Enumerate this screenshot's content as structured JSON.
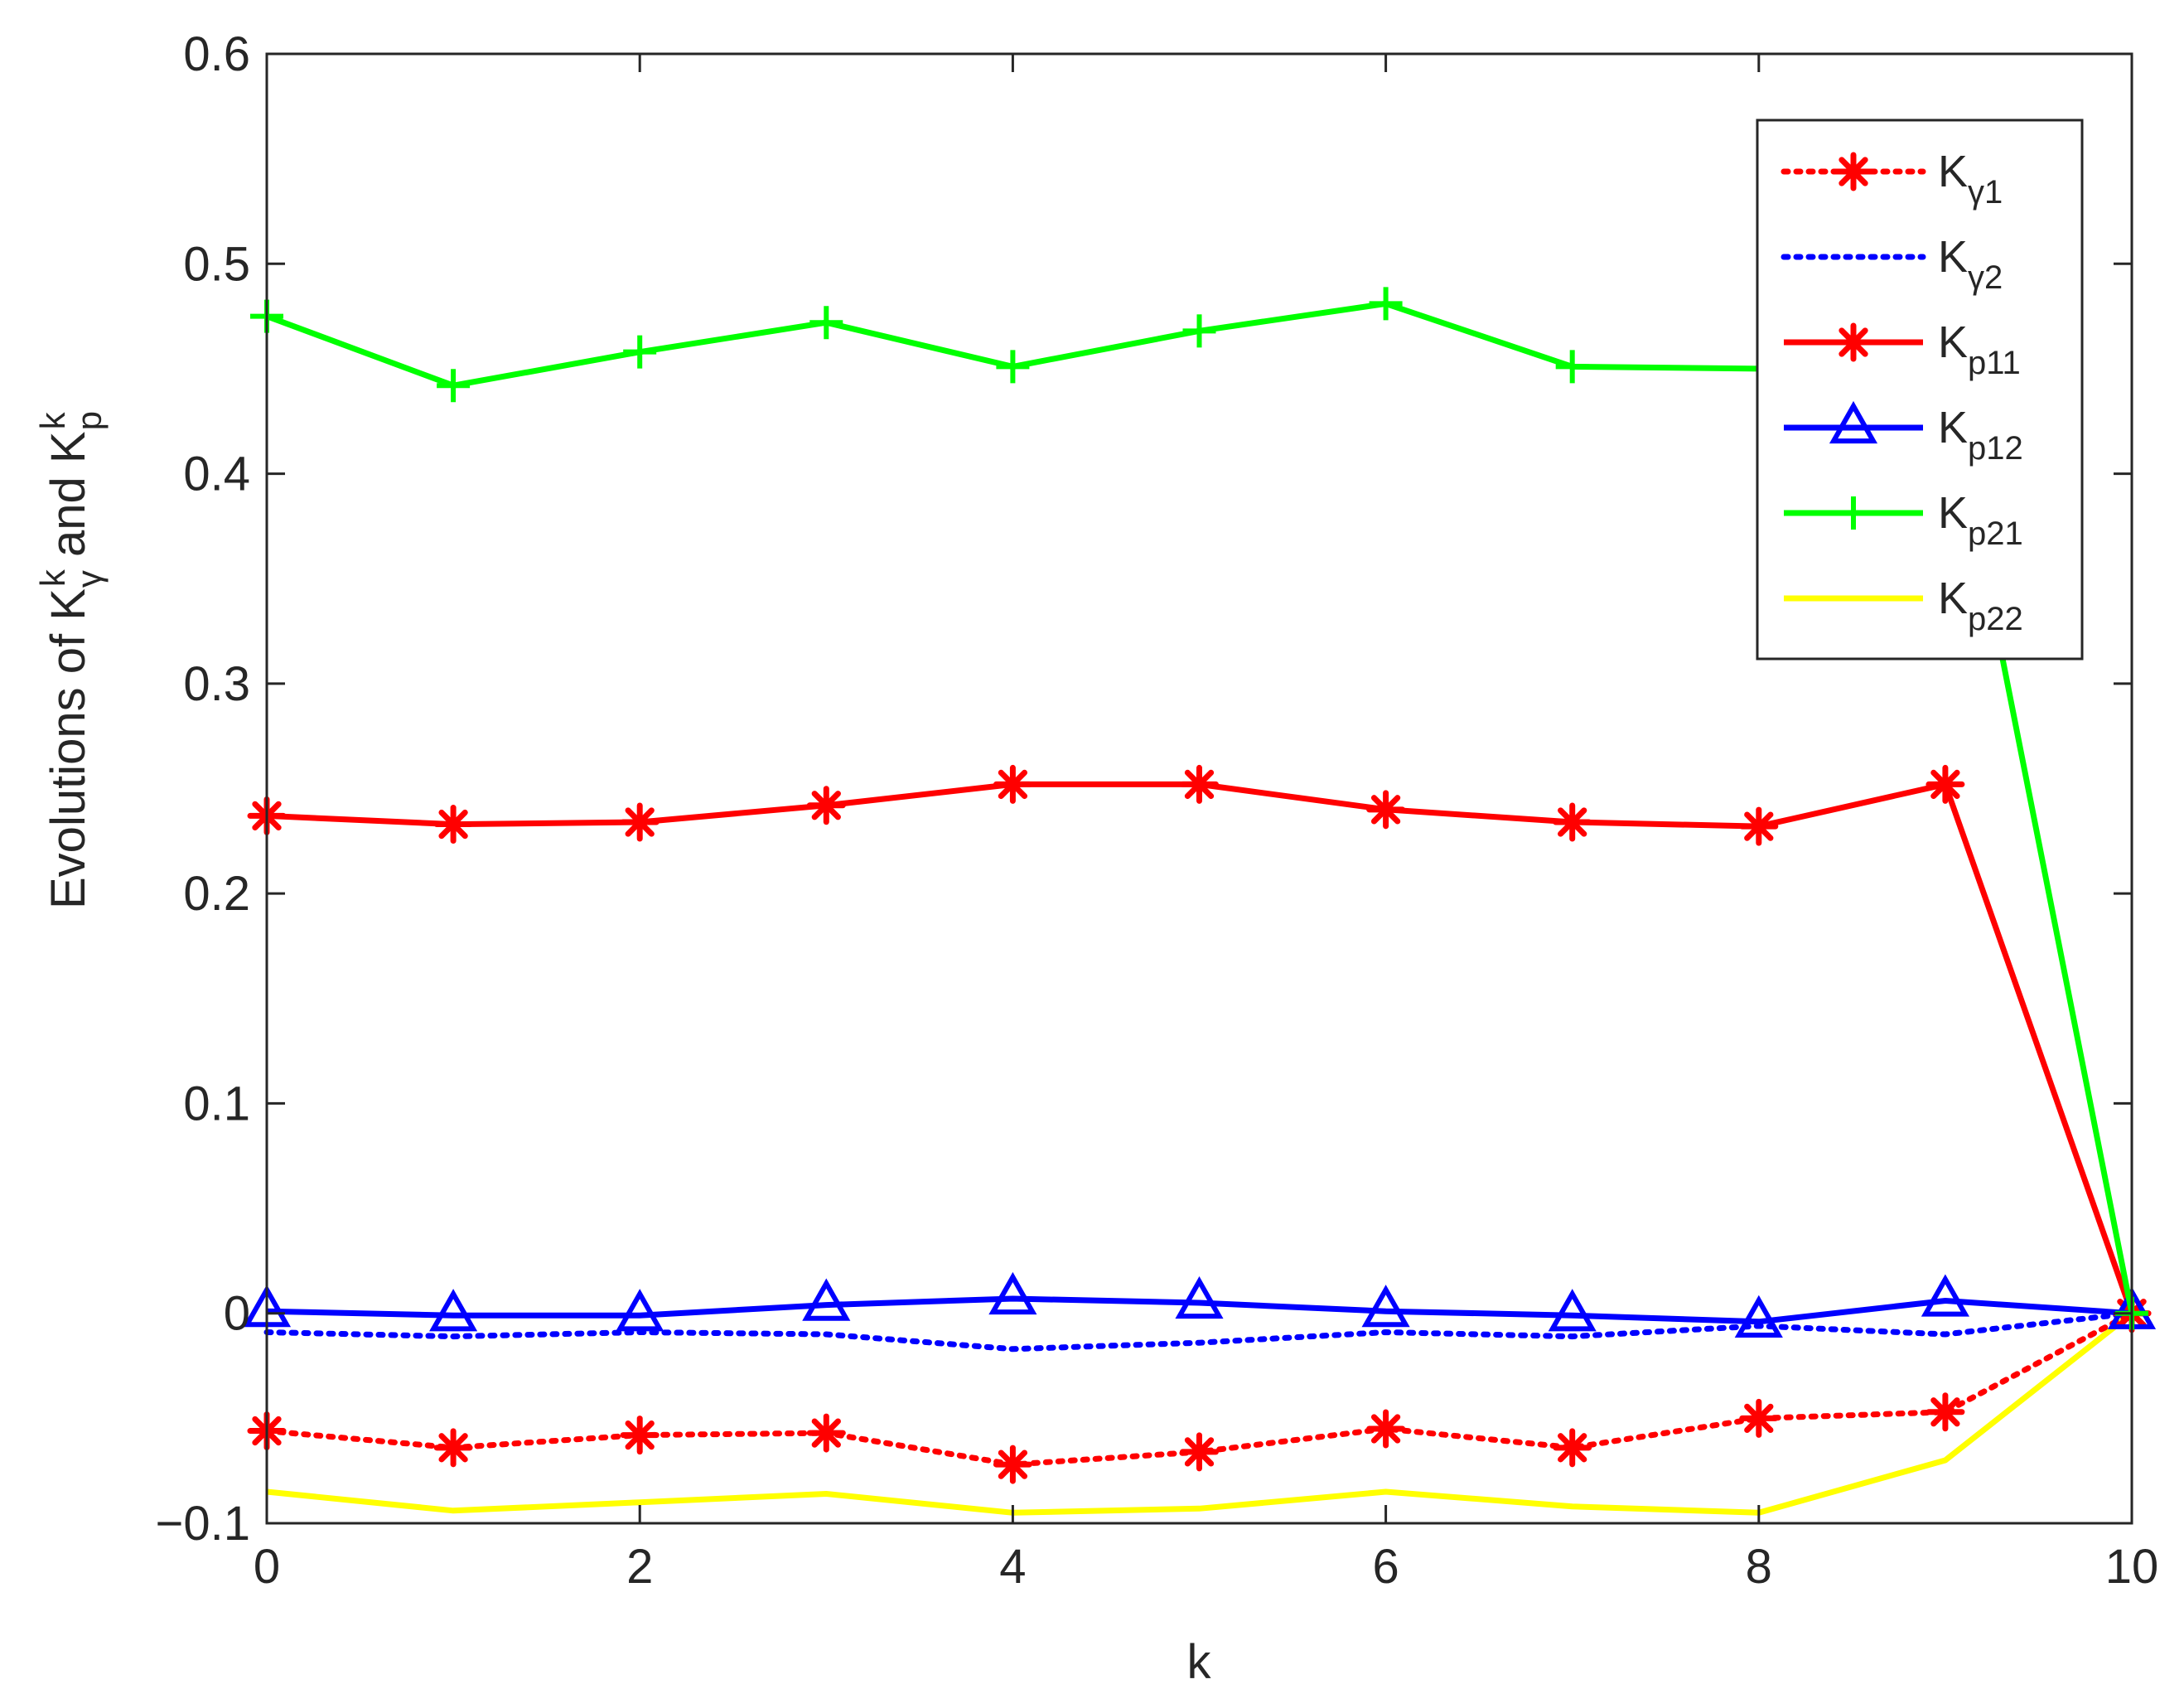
{
  "chart_data": {
    "type": "line",
    "xlabel": "k",
    "ylabel": {
      "prefix": "Evolutions of K",
      "sup1": "k",
      "sub1": "γ",
      "middle": " and K",
      "sup2": "k",
      "sub2": "p"
    },
    "xlim": [
      0,
      10
    ],
    "ylim": [
      -0.1,
      0.6
    ],
    "xticks": [
      0,
      2,
      4,
      6,
      8,
      10
    ],
    "xtick_labels": [
      "0",
      "2",
      "4",
      "6",
      "8",
      "10"
    ],
    "yticks": [
      -0.1,
      0,
      0.1,
      0.2,
      0.3,
      0.4,
      0.5,
      0.6
    ],
    "ytick_labels": [
      "−0.1",
      "0",
      "0.1",
      "0.2",
      "0.3",
      "0.4",
      "0.5",
      "0.6"
    ],
    "x": [
      0,
      1,
      2,
      3,
      4,
      5,
      6,
      7,
      8,
      9,
      10
    ],
    "legend_position": "top-right",
    "grid": false,
    "series": [
      {
        "name": "K",
        "sub": "γ1",
        "color": "#ff0000",
        "style": "dotted",
        "marker": "asterisk",
        "values": [
          -0.056,
          -0.064,
          -0.058,
          -0.057,
          -0.072,
          -0.066,
          -0.055,
          -0.064,
          -0.05,
          -0.047,
          0.0
        ]
      },
      {
        "name": "K",
        "sub": "γ2",
        "color": "#0000ff",
        "style": "dotted",
        "marker": "none",
        "values": [
          -0.009,
          -0.011,
          -0.009,
          -0.01,
          -0.017,
          -0.014,
          -0.009,
          -0.011,
          -0.006,
          -0.01,
          0.0
        ]
      },
      {
        "name": "K",
        "sub": "p11",
        "color": "#ff0000",
        "style": "solid",
        "marker": "asterisk",
        "values": [
          0.237,
          0.233,
          0.234,
          0.242,
          0.252,
          0.252,
          0.24,
          0.234,
          0.232,
          0.252,
          0.0
        ]
      },
      {
        "name": "K",
        "sub": "p12",
        "color": "#0000ff",
        "style": "solid",
        "marker": "triangle",
        "values": [
          0.001,
          -0.001,
          -0.001,
          0.004,
          0.007,
          0.005,
          0.001,
          -0.001,
          -0.004,
          0.006,
          0.0
        ]
      },
      {
        "name": "K",
        "sub": "p21",
        "color": "#00ff00",
        "style": "solid",
        "marker": "plus",
        "values": [
          0.475,
          0.442,
          0.458,
          0.472,
          0.451,
          0.468,
          0.481,
          0.451,
          0.45,
          0.45,
          0.0
        ]
      },
      {
        "name": "K",
        "sub": "p22",
        "color": "#ffff00",
        "style": "solid",
        "marker": "none",
        "values": [
          -0.085,
          -0.094,
          -0.09,
          -0.086,
          -0.095,
          -0.093,
          -0.085,
          -0.092,
          -0.095,
          -0.07,
          0.0
        ]
      }
    ]
  }
}
